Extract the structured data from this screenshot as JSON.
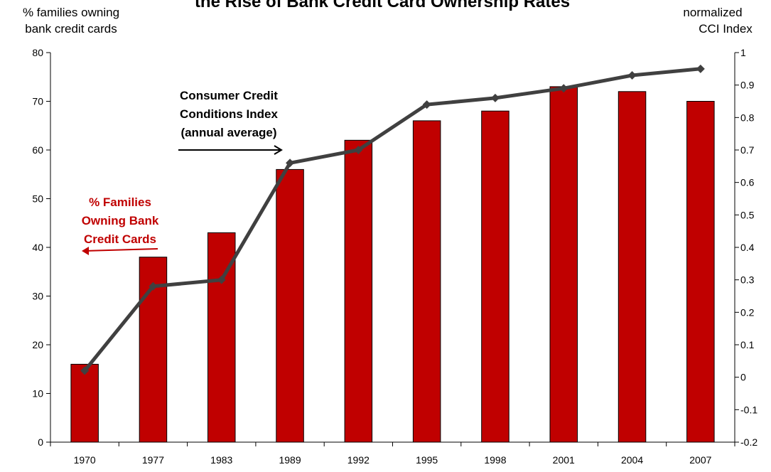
{
  "chart_data": {
    "type": "bar",
    "title": "the Rise of Bank Credit Card Ownership Rates",
    "ylabel_left": [
      "% families owning",
      "bank credit cards"
    ],
    "ylabel_right": [
      "normalized",
      "CCI Index"
    ],
    "categories": [
      "1970",
      "1977",
      "1983",
      "1989",
      "1992",
      "1995",
      "1998",
      "2001",
      "2004",
      "2007"
    ],
    "ylim_left": [
      0,
      80
    ],
    "yticks_left": [
      "0",
      "10",
      "20",
      "30",
      "40",
      "50",
      "60",
      "70",
      "80"
    ],
    "ylim_right": [
      -0.2,
      1
    ],
    "yticks_right": [
      "-0.2",
      "-0.1",
      "0",
      "0.1",
      "0.2",
      "0.3",
      "0.4",
      "0.5",
      "0.6",
      "0.7",
      "0.8",
      "0.9",
      "1"
    ],
    "grid": false,
    "series": [
      {
        "kind": "bar",
        "axis": "left",
        "color": "#c00000",
        "values": [
          16,
          38,
          43,
          56,
          62,
          66,
          68,
          73,
          72,
          70
        ]
      },
      {
        "kind": "line",
        "axis": "right",
        "color": "#404040",
        "values": [
          0.02,
          0.28,
          0.3,
          0.66,
          0.7,
          0.84,
          0.86,
          0.89,
          0.93,
          0.95
        ]
      }
    ],
    "annotations": [
      {
        "lines": [
          "Consumer Credit",
          "Conditions Index",
          "(annual average)"
        ],
        "color": "#000000"
      },
      {
        "lines": [
          "% Families",
          "Owning Bank",
          "Credit Cards"
        ],
        "color": "#c00000"
      }
    ]
  }
}
